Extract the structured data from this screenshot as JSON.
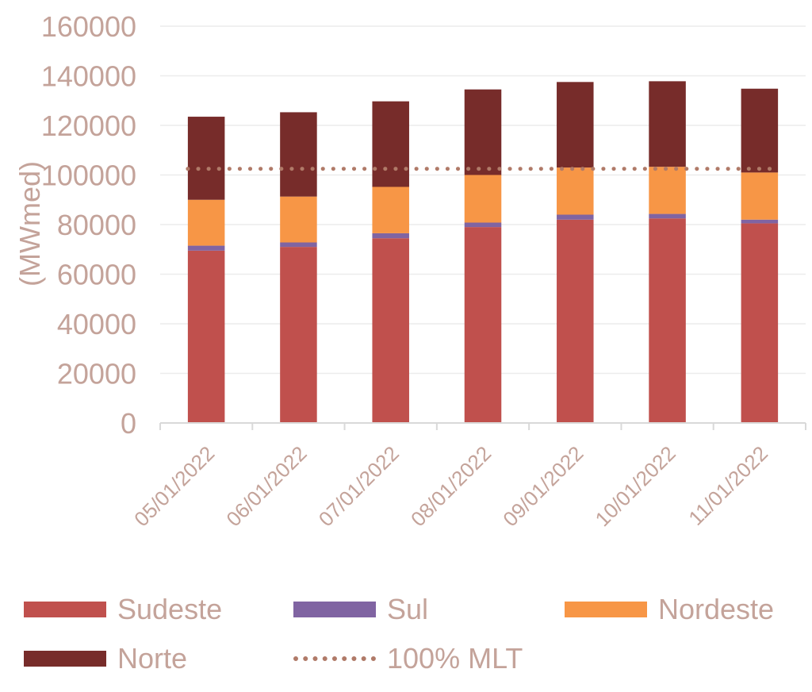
{
  "chart_data": {
    "type": "bar",
    "stacked": true,
    "title": "",
    "xlabel": "",
    "ylabel": "(MWmed)",
    "ylim": [
      0,
      160000
    ],
    "yticks": [
      0,
      20000,
      40000,
      60000,
      80000,
      100000,
      120000,
      140000,
      160000
    ],
    "ytick_labels": [
      "0",
      "20000",
      "40000",
      "60000",
      "80000",
      "100000",
      "120000",
      "140000",
      "160000"
    ],
    "grid": true,
    "legend_position": "bottom",
    "categories": [
      "05/01/2022",
      "06/01/2022",
      "07/01/2022",
      "08/01/2022",
      "09/01/2022",
      "10/01/2022",
      "11/01/2022"
    ],
    "series": [
      {
        "name": "Sudeste",
        "color": "#c0504d",
        "values": [
          69500,
          71000,
          74500,
          79000,
          82000,
          82500,
          80500
        ]
      },
      {
        "name": "Sul",
        "color": "#8064a2",
        "values": [
          2000,
          1800,
          2000,
          1800,
          2000,
          1800,
          1500
        ]
      },
      {
        "name": "Nordeste",
        "color": "#f79646",
        "values": [
          18500,
          18500,
          18700,
          19200,
          19000,
          19000,
          19000
        ]
      },
      {
        "name": "Norte",
        "color": "#772c2a",
        "values": [
          33500,
          34000,
          34500,
          34500,
          34500,
          34500,
          33800
        ]
      }
    ],
    "reference_line": {
      "name": "100% MLT",
      "value": 102500,
      "color": "#b07a68",
      "style": "dotted"
    }
  }
}
